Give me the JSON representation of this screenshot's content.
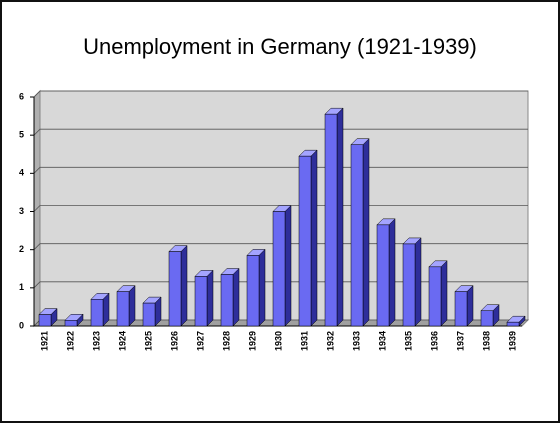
{
  "chart_data": {
    "type": "bar",
    "title": "Unemployment in Germany (1921-1939)",
    "categories": [
      "1921",
      "1922",
      "1923",
      "1924",
      "1925",
      "1926",
      "1927",
      "1928",
      "1929",
      "1930",
      "1931",
      "1932",
      "1933",
      "1934",
      "1935",
      "1936",
      "1937",
      "1938",
      "1939"
    ],
    "values": [
      0.3,
      0.15,
      0.7,
      0.9,
      0.6,
      1.95,
      1.3,
      1.35,
      1.85,
      3.0,
      4.45,
      5.55,
      4.75,
      2.65,
      2.15,
      1.55,
      0.9,
      0.4,
      0.1
    ],
    "color": "#6a6af2",
    "ylim": [
      0,
      6
    ],
    "yticks": [
      0,
      1,
      2,
      3,
      4,
      5,
      6
    ],
    "grid": true
  }
}
